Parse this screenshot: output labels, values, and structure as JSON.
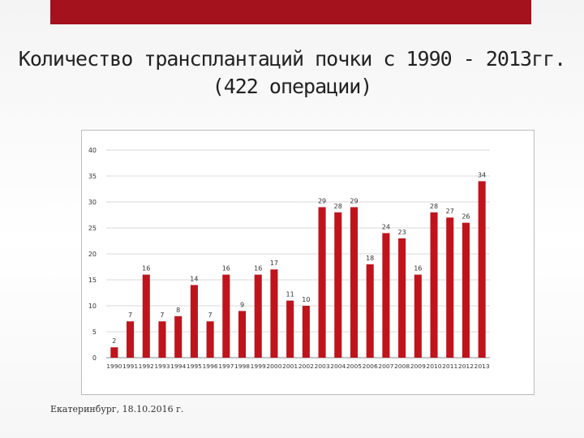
{
  "slide": {
    "title_line1": "Количество трансплантаций почки с 1990  -  2013гг.",
    "title_line2": "(422 операции)",
    "footer": "Екатеринбург, 18.10.2016 г."
  },
  "colors": {
    "bar": "#c0131c",
    "accent_bar": "#a3121d",
    "grid": "#d9d9d9",
    "axis": "#888888",
    "text": "#333333"
  },
  "chart_data": {
    "type": "bar",
    "categories": [
      "1990",
      "1991",
      "1992",
      "1993",
      "1994",
      "1995",
      "1996",
      "1997",
      "1998",
      "1999",
      "2000",
      "2001",
      "2002",
      "2003",
      "2004",
      "2005",
      "2006",
      "2007",
      "2008",
      "2009",
      "2010",
      "2011",
      "2012",
      "2013"
    ],
    "values": [
      2,
      7,
      16,
      7,
      8,
      14,
      7,
      16,
      9,
      16,
      17,
      11,
      10,
      29,
      28,
      29,
      18,
      24,
      23,
      16,
      28,
      27,
      26,
      34
    ],
    "ylim": [
      0,
      40
    ],
    "yticks": [
      0,
      5,
      10,
      15,
      20,
      25,
      30,
      35,
      40
    ],
    "grid": true,
    "legend": "none",
    "data_labels": true
  }
}
